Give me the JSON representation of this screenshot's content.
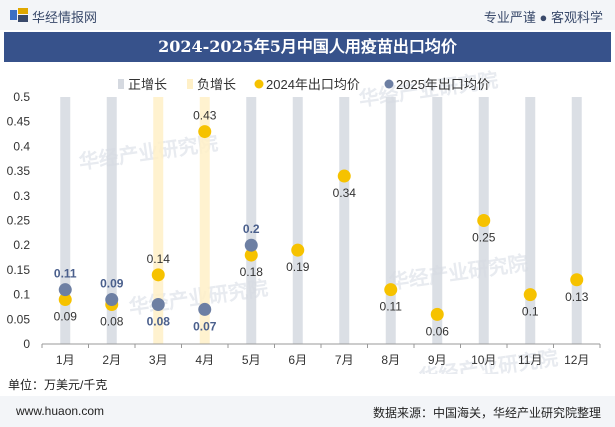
{
  "header": {
    "brand": "华经情报网",
    "tagline": "专业严谨 ● 客观科学"
  },
  "title": "2024-2025年5月中国人用疫苗出口均价",
  "unit": "单位：万美元/千克",
  "footer": {
    "site": "www.huaon.com",
    "source": "数据来源：中国海关，华经产业研究院整理"
  },
  "watermark": "华经产业研究院",
  "colors": {
    "positive_bar": "#d5d9e0",
    "negative_bar": "#fff0c7",
    "series_2024": "#f6c200",
    "series_2025": "#6d7fa3",
    "title_bg": "#37528b"
  },
  "chart_data": {
    "type": "scatter",
    "title": "2024-2025年5月中国人用疫苗出口均价",
    "categories": [
      "1月",
      "2月",
      "3月",
      "4月",
      "5月",
      "6月",
      "7月",
      "8月",
      "9月",
      "10月",
      "11月",
      "12月"
    ],
    "legend": [
      "正增长",
      "负增长",
      "2024年出口均价",
      "2025年出口均价"
    ],
    "ylim": [
      0,
      0.5
    ],
    "yticks": [
      "0",
      "0.05",
      "0.1",
      "0.15",
      "0.2",
      "0.25",
      "0.3",
      "0.35",
      "0.4",
      "0.45",
      "0.5"
    ],
    "ytick_values": [
      0,
      0.05,
      0.1,
      0.15,
      0.2,
      0.25,
      0.3,
      0.35,
      0.4,
      0.45,
      0.5
    ],
    "series": [
      {
        "name": "2024年出口均价",
        "values": [
          0.09,
          0.08,
          0.14,
          0.43,
          0.18,
          0.19,
          0.34,
          0.11,
          0.06,
          0.25,
          0.1,
          0.13
        ],
        "labels": [
          "0.09",
          "0.08",
          "0.14",
          "0.43",
          "0.18",
          "0.19",
          "0.34",
          "0.11",
          "0.06",
          "0.25",
          "0.1",
          "0.13"
        ]
      },
      {
        "name": "2025年出口均价",
        "values": [
          0.11,
          0.09,
          0.08,
          0.07,
          0.2
        ],
        "labels": [
          "0.11",
          "0.09",
          "0.08",
          "0.07",
          "0.2"
        ]
      }
    ],
    "growth": [
      "positive",
      "positive",
      "negative",
      "negative",
      "positive",
      "positive",
      "positive",
      "positive",
      "positive",
      "positive",
      "positive",
      "positive"
    ]
  }
}
